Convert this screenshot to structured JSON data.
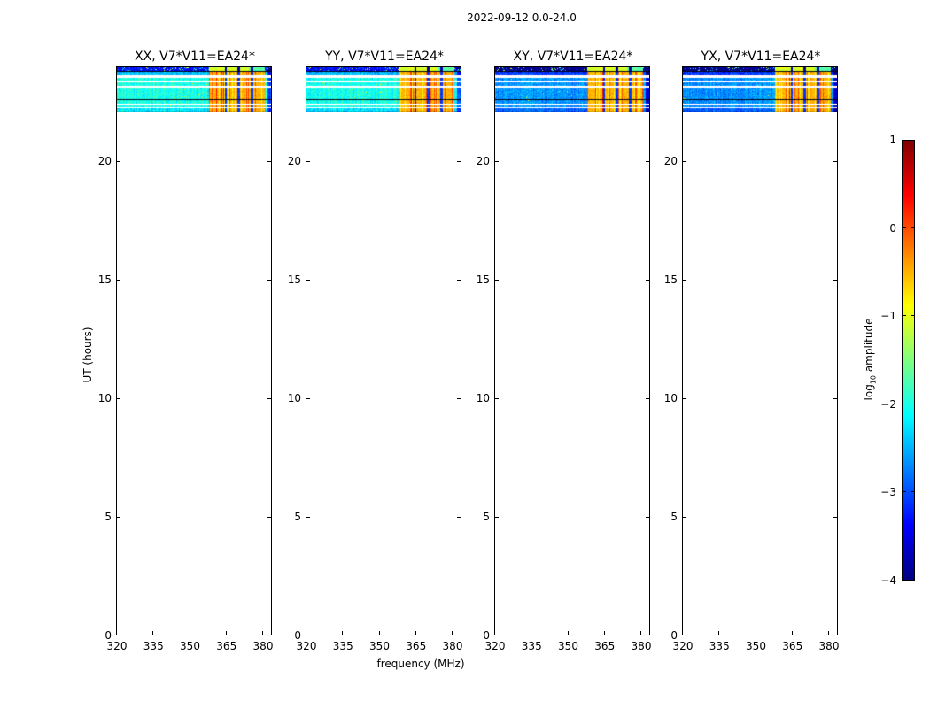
{
  "figure": {
    "title": "2022-09-12 0.0-24.0",
    "background_color": "#ffffff"
  },
  "chart_data": {
    "type": "heatmap",
    "title": "2022-09-12 0.0-24.0",
    "xlabel": "frequency (MHz)",
    "ylabel": "UT (hours)",
    "xlim": [
      320,
      384
    ],
    "ylim": [
      0,
      24
    ],
    "xticks": [
      320,
      335,
      350,
      365,
      380
    ],
    "yticks": [
      0,
      5,
      10,
      15,
      20
    ],
    "grid": false,
    "colormap": "jet",
    "colorbar": {
      "label_prefix": "log",
      "label_sub": "10",
      "label_suffix": " amplitude",
      "vmin": -4,
      "vmax": 1,
      "ticks": [
        1,
        0,
        -1,
        -2,
        -3,
        -4
      ],
      "stops": [
        {
          "pos": 0.0,
          "color": "#000080"
        },
        {
          "pos": 0.125,
          "color": "#0000ff"
        },
        {
          "pos": 0.375,
          "color": "#00ffff"
        },
        {
          "pos": 0.625,
          "color": "#ffff00"
        },
        {
          "pos": 0.875,
          "color": "#ff0000"
        },
        {
          "pos": 1.0,
          "color": "#800000"
        }
      ]
    },
    "panels": [
      {
        "title": "XX, V7*V11=EA24*",
        "pol": "XX",
        "background_log_amp": -2.0
      },
      {
        "title": "YY, V7*V11=EA24*",
        "pol": "YY",
        "background_log_amp": -2.0
      },
      {
        "title": "XY, V7*V11=EA24*",
        "pol": "XY",
        "background_log_amp": -2.65
      },
      {
        "title": "YX, V7*V11=EA24*",
        "pol": "YX",
        "background_log_amp": -2.65
      }
    ],
    "data_block": {
      "comment": "data present only between ~22.1h and 24.0h UT; rest of each panel is empty (white)",
      "time_range_hours": [
        22.1,
        24.0
      ],
      "freq_range_mhz": [
        320,
        384
      ],
      "row_bands": [
        {
          "type": "speckled_dark",
          "from": 24.0,
          "to": 23.85
        },
        {
          "type": "black_line",
          "from": 23.85,
          "to": 23.81
        },
        {
          "type": "data_dim",
          "from": 23.81,
          "to": 23.66
        },
        {
          "type": "missing",
          "from": 23.66,
          "to": 23.57
        },
        {
          "type": "data",
          "from": 23.57,
          "to": 23.44
        },
        {
          "type": "missing",
          "from": 23.44,
          "to": 23.38
        },
        {
          "type": "data",
          "from": 23.38,
          "to": 23.22
        },
        {
          "type": "missing",
          "from": 23.22,
          "to": 23.16
        },
        {
          "type": "data",
          "from": 23.16,
          "to": 22.66
        },
        {
          "type": "black_line",
          "from": 22.66,
          "to": 22.62
        },
        {
          "type": "data",
          "from": 22.62,
          "to": 22.47
        },
        {
          "type": "missing",
          "from": 22.47,
          "to": 22.41
        },
        {
          "type": "data",
          "from": 22.41,
          "to": 22.32
        },
        {
          "type": "missing",
          "from": 22.32,
          "to": 22.28
        },
        {
          "type": "data_dim2",
          "from": 22.28,
          "to": 22.12
        },
        {
          "type": "black_line",
          "from": 22.12,
          "to": 22.08
        }
      ],
      "rfi_band": {
        "f_start_mhz": 358,
        "f_end_mhz": 381,
        "log_amp": -0.5,
        "sub_band_gaps_mhz": [
          [
            364.4,
            365.4
          ],
          [
            369.8,
            370.8
          ],
          [
            375.2,
            376.2
          ],
          [
            380.9,
            381.5
          ]
        ],
        "gap_log_amp": -3.1
      },
      "right_dark_edge_start_mhz": 382
    }
  }
}
